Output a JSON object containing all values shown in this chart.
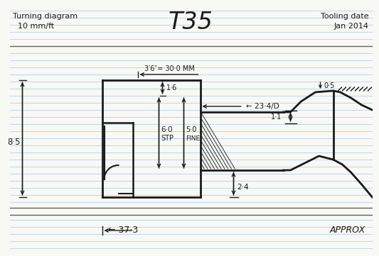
{
  "title": "T35",
  "top_left_line1": "Turning diagram",
  "top_left_line2": "  10 mm/ft",
  "top_right_line1": "Tooling date",
  "top_right_line2": "Jan 2014",
  "dim_30mm": "3′6″= 30·0 MM",
  "dim_234": "← 23·4/D",
  "dim_05": "0·5",
  "dim_11": "1·1",
  "dim_16": "1·6",
  "dim_60": "6·0",
  "dim_60_label": "STP",
  "dim_50": "5·0",
  "dim_50_label": "FINE",
  "dim_85": "8·5",
  "dim_24": "2·4",
  "dim_373": "← 37·3",
  "approx": "APPROX",
  "bg_color": "#f8f8f5",
  "line_color": "#1a1a1a",
  "rule_color": "#b8cfe8",
  "sep_color": "#606060"
}
